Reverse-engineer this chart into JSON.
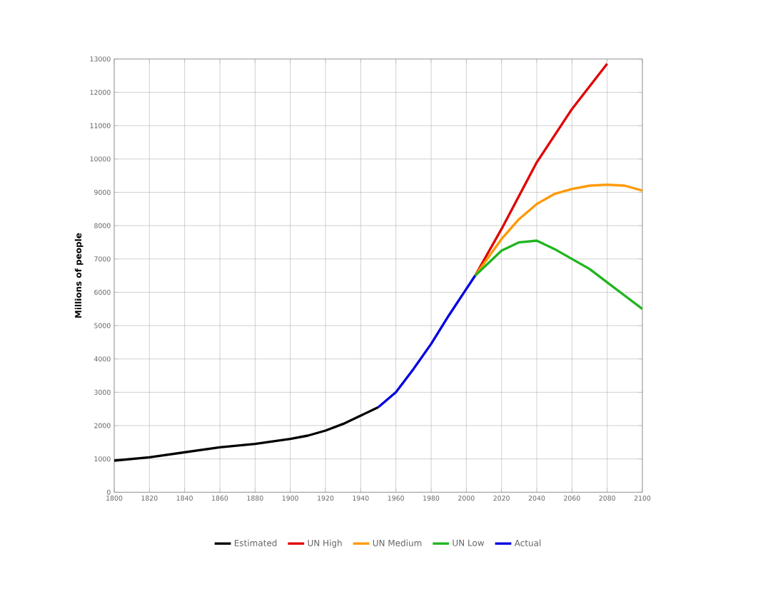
{
  "chart_data": {
    "type": "line",
    "ylabel": "Millions of people",
    "xlim": [
      1800,
      2100
    ],
    "xticks": [
      1800,
      1820,
      1840,
      1860,
      1880,
      1900,
      1920,
      1940,
      1960,
      1980,
      2000,
      2020,
      2040,
      2060,
      2080,
      2100
    ],
    "ylim": [
      0,
      13000
    ],
    "yticks": [
      0,
      1000,
      2000,
      3000,
      4000,
      5000,
      6000,
      7000,
      8000,
      9000,
      10000,
      11000,
      12000,
      13000
    ],
    "grid": true,
    "legend": "bottom",
    "marker": "none",
    "line_style": "solid",
    "series": [
      {
        "name": "Estimated",
        "color": "#000000",
        "x": [
          1800,
          1820,
          1840,
          1860,
          1880,
          1900,
          1910,
          1920,
          1930,
          1940,
          1950
        ],
        "values": [
          950,
          1050,
          1200,
          1350,
          1450,
          1600,
          1700,
          1850,
          2050,
          2300,
          2550
        ]
      },
      {
        "name": "UN High",
        "color": "#e00000",
        "x": [
          2005,
          2020,
          2040,
          2060,
          2080
        ],
        "values": [
          6500,
          7900,
          9900,
          11500,
          12860
        ]
      },
      {
        "name": "UN Medium",
        "color": "#ff9900",
        "x": [
          2005,
          2020,
          2030,
          2040,
          2050,
          2060,
          2070,
          2080,
          2090,
          2100
        ],
        "values": [
          6500,
          7600,
          8200,
          8650,
          8950,
          9100,
          9200,
          9230,
          9200,
          9050
        ]
      },
      {
        "name": "UN Low",
        "color": "#1fb51f",
        "x": [
          2005,
          2020,
          2030,
          2040,
          2050,
          2060,
          2070,
          2080,
          2090,
          2100
        ],
        "values": [
          6500,
          7250,
          7500,
          7550,
          7300,
          7000,
          6700,
          6300,
          5900,
          5500
        ]
      },
      {
        "name": "Actual",
        "color": "#0000e0",
        "x": [
          1950,
          1960,
          1970,
          1980,
          1990,
          2000,
          2005
        ],
        "values": [
          2550,
          3000,
          3700,
          4450,
          5300,
          6100,
          6500
        ]
      }
    ]
  }
}
